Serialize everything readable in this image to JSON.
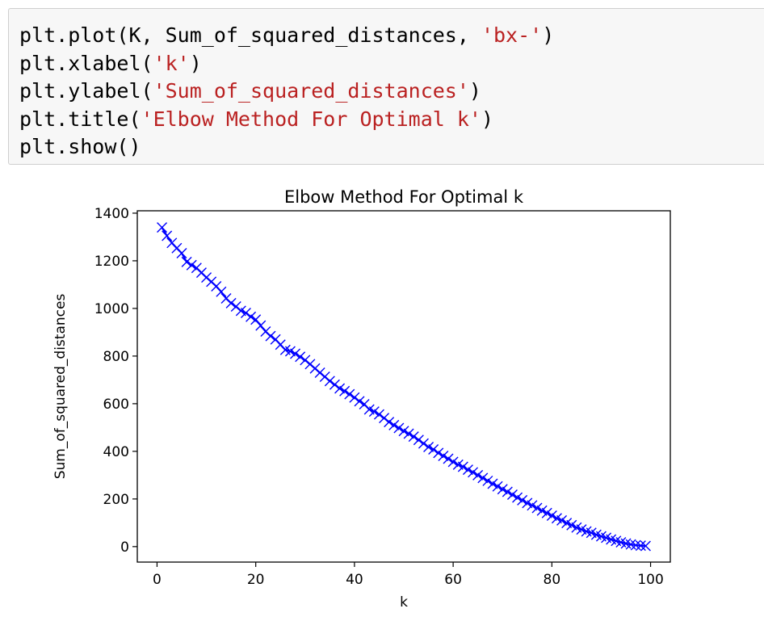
{
  "notebook": {
    "code_cell": {
      "lines": [
        [
          {
            "t": "plt.plot(K, Sum_of_squared_distances, ",
            "c": "plain"
          },
          {
            "t": "'bx-'",
            "c": "str"
          },
          {
            "t": ")",
            "c": "plain"
          }
        ],
        [
          {
            "t": "plt.xlabel(",
            "c": "plain"
          },
          {
            "t": "'k'",
            "c": "str"
          },
          {
            "t": ")",
            "c": "plain"
          }
        ],
        [
          {
            "t": "plt.ylabel(",
            "c": "plain"
          },
          {
            "t": "'Sum_of_squared_distances'",
            "c": "str"
          },
          {
            "t": ")",
            "c": "plain"
          }
        ],
        [
          {
            "t": "plt.title(",
            "c": "plain"
          },
          {
            "t": "'Elbow Method For Optimal k'",
            "c": "str"
          },
          {
            "t": ")",
            "c": "plain"
          }
        ],
        [
          {
            "t": "plt.show()",
            "c": "plain"
          }
        ]
      ],
      "string_color": "#ba2121",
      "background": "#f7f7f7"
    }
  },
  "chart_data": {
    "type": "line",
    "title": "Elbow Method For Optimal k",
    "xlabel": "k",
    "ylabel": "Sum_of_squared_distances",
    "xlim": [
      -4,
      104
    ],
    "ylim": [
      -65,
      1410
    ],
    "xticks": [
      0,
      20,
      40,
      60,
      80,
      100
    ],
    "yticks": [
      0,
      200,
      400,
      600,
      800,
      1000,
      1200,
      1400
    ],
    "grid": false,
    "legend": "none",
    "series": [
      {
        "color": "#0000ff",
        "marker": "x",
        "linestyle": "solid",
        "x": [
          1,
          2,
          3,
          4,
          5,
          6,
          7,
          8,
          9,
          10,
          11,
          12,
          13,
          14,
          15,
          16,
          17,
          18,
          19,
          20,
          21,
          22,
          23,
          24,
          25,
          26,
          27,
          28,
          29,
          30,
          31,
          32,
          33,
          34,
          35,
          36,
          37,
          38,
          39,
          40,
          41,
          42,
          43,
          44,
          45,
          46,
          47,
          48,
          49,
          50,
          51,
          52,
          53,
          54,
          55,
          56,
          57,
          58,
          59,
          60,
          61,
          62,
          63,
          64,
          65,
          66,
          67,
          68,
          69,
          70,
          71,
          72,
          73,
          74,
          75,
          76,
          77,
          78,
          79,
          80,
          81,
          82,
          83,
          84,
          85,
          86,
          87,
          88,
          89,
          90,
          91,
          92,
          93,
          94,
          95,
          96,
          97,
          98,
          99
        ],
        "values": [
          1340,
          1305,
          1275,
          1253,
          1232,
          1195,
          1182,
          1170,
          1150,
          1130,
          1112,
          1093,
          1070,
          1042,
          1022,
          1008,
          990,
          981,
          965,
          953,
          928,
          903,
          884,
          870,
          848,
          826,
          820,
          810,
          797,
          783,
          766,
          748,
          730,
          713,
          695,
          680,
          664,
          653,
          640,
          626,
          610,
          598,
          576,
          567,
          555,
          540,
          523,
          510,
          498,
          485,
          474,
          462,
          448,
          433,
          418,
          408,
          393,
          381,
          369,
          356,
          344,
          335,
          323,
          312,
          300,
          288,
          276,
          264,
          253,
          241,
          230,
          218,
          206,
          195,
          183,
          173,
          162,
          151,
          141,
          130,
          119,
          110,
          99,
          90,
          80,
          72,
          64,
          58,
          50,
          43,
          37,
          30,
          24,
          18,
          13,
          9,
          6,
          4,
          3
        ]
      }
    ]
  }
}
